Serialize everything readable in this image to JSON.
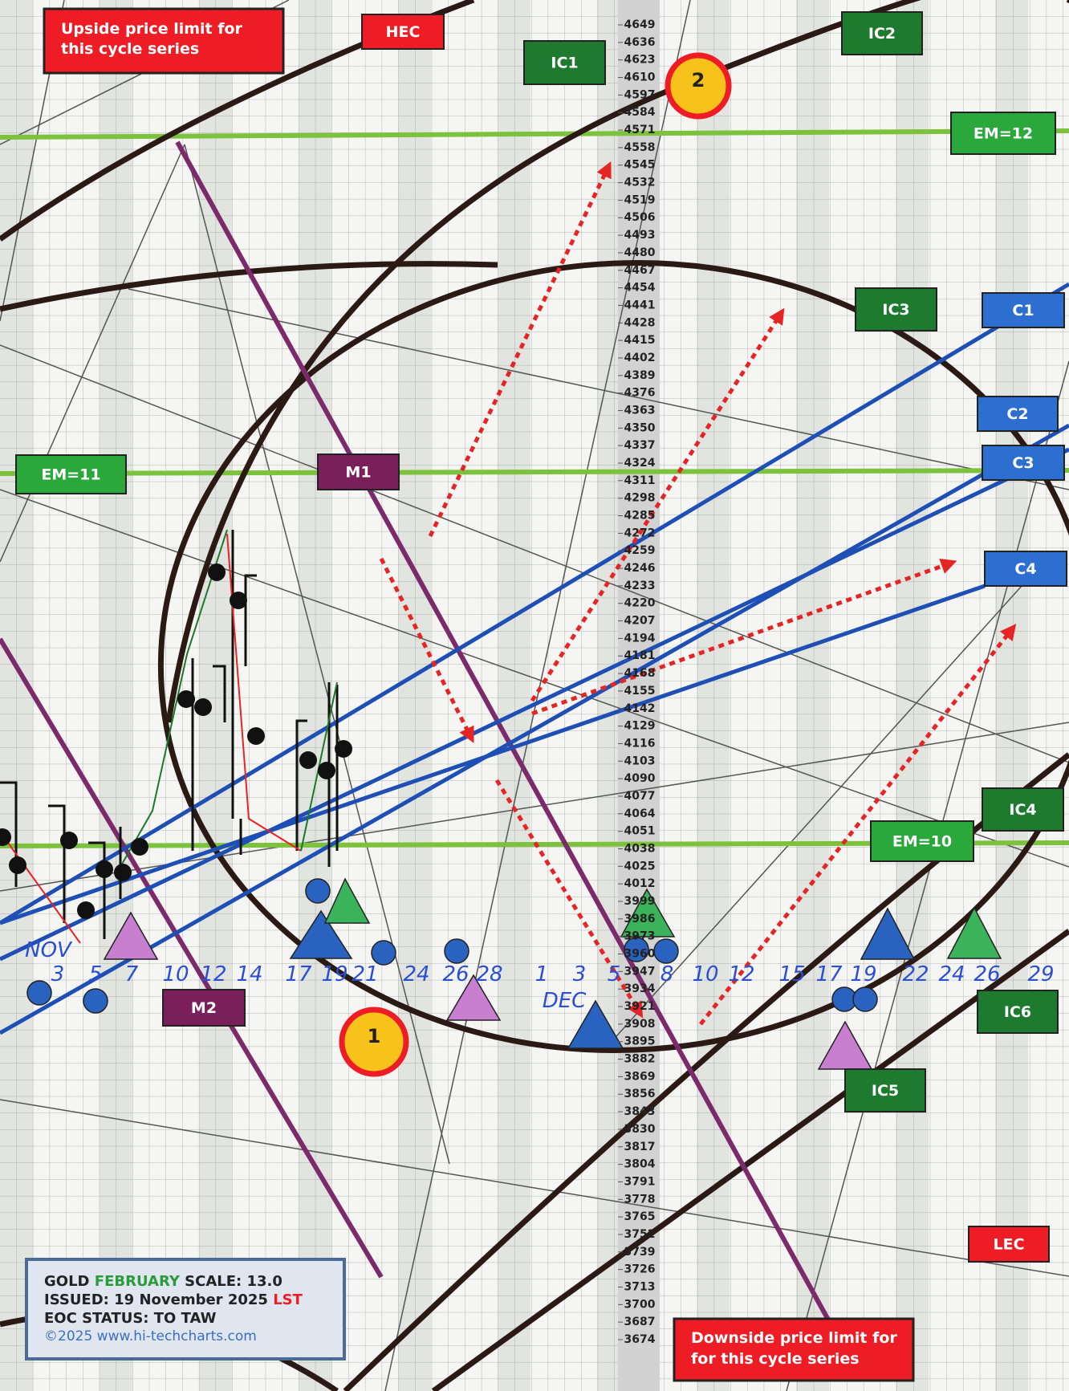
{
  "notes": {
    "upside": [
      "Upside price limit for",
      "this cycle series"
    ],
    "downside": [
      "Downside price limit for",
      "for this cycle series"
    ]
  },
  "labels": {
    "hec": "HEC",
    "lec": "LEC",
    "ic1": "IC1",
    "ic2": "IC2",
    "ic3": "IC3",
    "ic4": "IC4",
    "ic5": "IC5",
    "ic6": "IC6",
    "c1": "C1",
    "c2": "C2",
    "c3": "C3",
    "c4": "C4",
    "em12": "EM=12",
    "em11": "EM=11",
    "em10": "EM=10",
    "m1": "M1",
    "m2": "M2"
  },
  "markers": [
    "1",
    "2"
  ],
  "months": [
    "NOV",
    "DEC"
  ],
  "price_scale": [
    4649,
    4636,
    4623,
    4610,
    4597,
    4584,
    4571,
    4558,
    4545,
    4532,
    4519,
    4506,
    4493,
    4480,
    4467,
    4454,
    4441,
    4428,
    4415,
    4402,
    4389,
    4376,
    4363,
    4350,
    4337,
    4324,
    4311,
    4298,
    4285,
    4272,
    4259,
    4246,
    4233,
    4220,
    4207,
    4194,
    4181,
    4168,
    4155,
    4142,
    4129,
    4116,
    4103,
    4090,
    4077,
    4064,
    4051,
    4038,
    4025,
    4012,
    3999,
    3986,
    3973,
    3960,
    3947,
    3934,
    3921,
    3908,
    3895,
    3882,
    3869,
    3856,
    3843,
    3830,
    3817,
    3804,
    3791,
    3778,
    3765,
    3752,
    3739,
    3726,
    3713,
    3700,
    3687,
    3674
  ],
  "dates": [
    "3",
    "5",
    "7",
    "10",
    "12",
    "14",
    "17",
    "19",
    "21",
    "24",
    "26",
    "28",
    "1",
    "3",
    "5",
    "8",
    "10",
    "12",
    "15",
    "17",
    "19",
    "22",
    "24",
    "26",
    "29"
  ],
  "info": {
    "commodity": "GOLD",
    "month": "FEBRUARY",
    "scale": "SCALE:  13.0",
    "issued": "ISSUED: 19 November 2025",
    "tag": "LST",
    "status": "EOC STATUS: TO TAW",
    "copyright": "©2025 www.hi-techcharts.com"
  }
}
